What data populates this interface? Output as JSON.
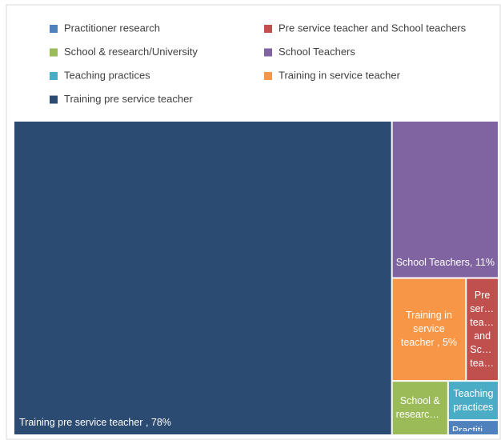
{
  "chart_data": {
    "type": "treemap",
    "series": [
      {
        "name": "Practitioner research",
        "color": "#4f81bd",
        "values": [
          0.5
        ]
      },
      {
        "name": "Pre service teacher and School teachers",
        "color": "#c0504d",
        "values": [
          2.2
        ]
      },
      {
        "name": "School & research/University",
        "color": "#9bbb59",
        "values": [
          2
        ]
      },
      {
        "name": "School Teachers",
        "color": "#8064a2",
        "values": [
          11
        ],
        "value_labels": [
          "School Teachers, 11%"
        ]
      },
      {
        "name": "Teaching practices",
        "color": "#4bacc6",
        "values": [
          1.3
        ]
      },
      {
        "name": "Training in service teacher",
        "color": "#f79646",
        "values": [
          5
        ],
        "value_labels": [
          "Training in service teacher , 5%"
        ]
      },
      {
        "name": "Training pre service teacher",
        "color": "#2c4b73",
        "values": [
          78
        ],
        "value_labels": [
          "Training pre service teacher , 78%"
        ]
      }
    ],
    "legend": "top"
  }
}
